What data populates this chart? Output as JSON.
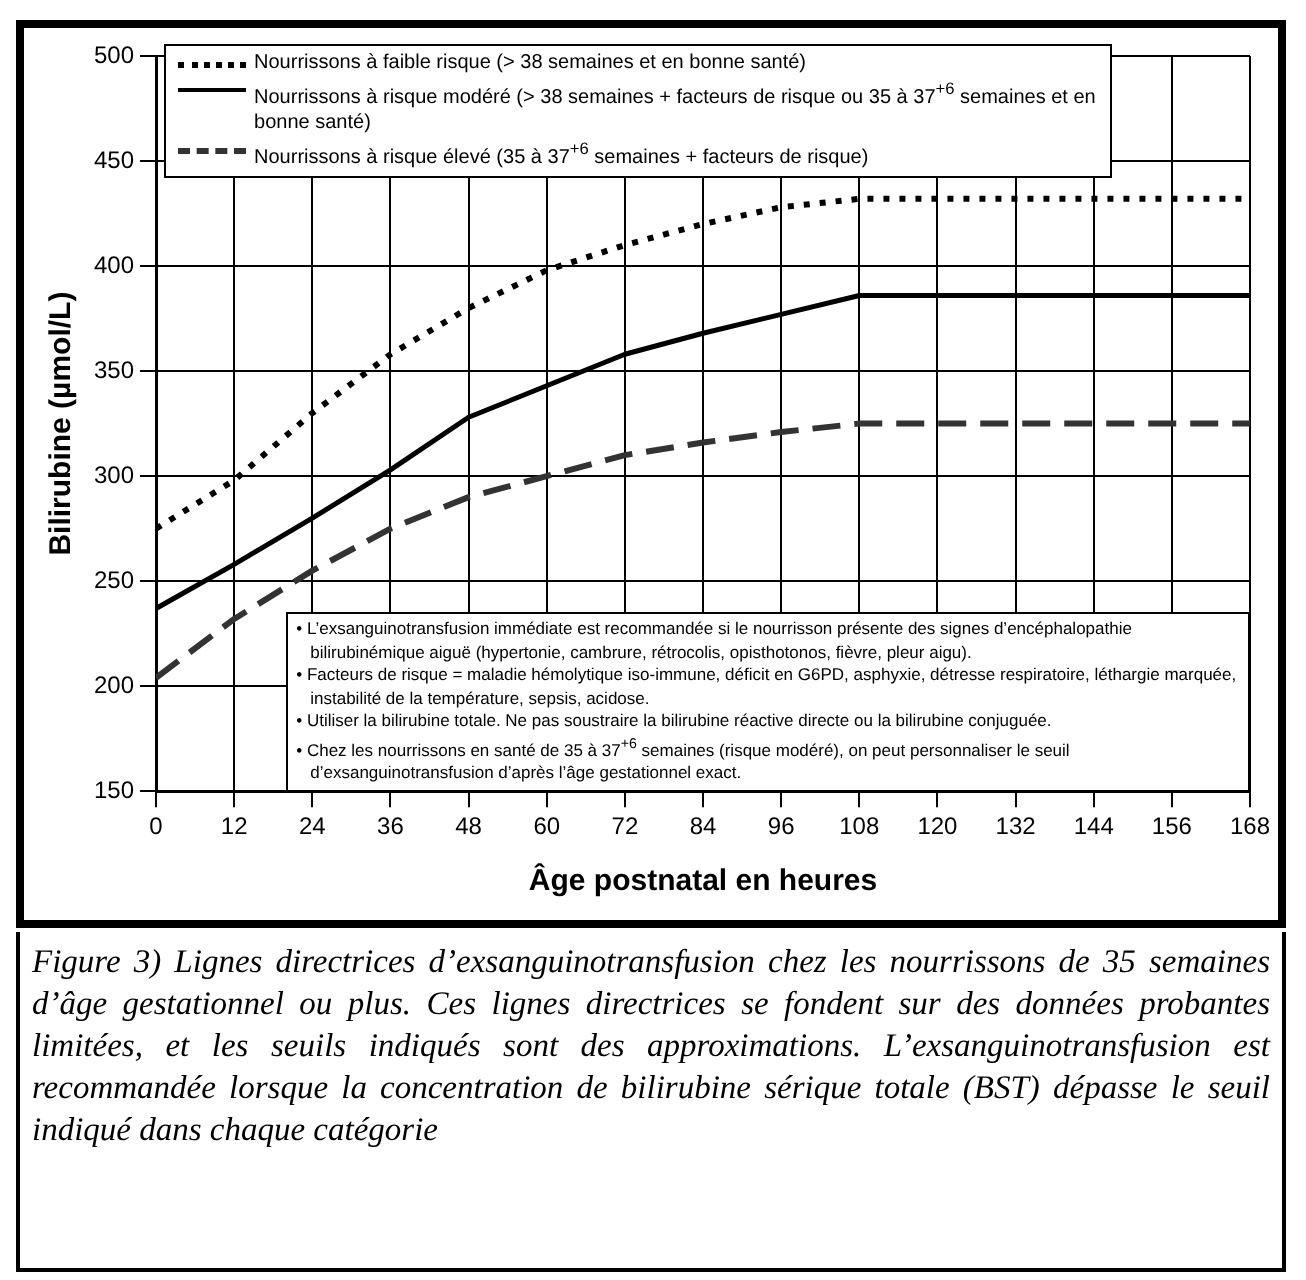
{
  "chart_data": {
    "type": "line",
    "xlabel": "Âge postnatal en heures",
    "ylabel": "Bilirubine (µmol/L)",
    "x": [
      0,
      12,
      24,
      36,
      48,
      60,
      72,
      84,
      96,
      108,
      120,
      132,
      144,
      156,
      168
    ],
    "series": [
      {
        "name": "Nourrissons à faible risque (> 38 semaines et en bonne santé)",
        "color": "#000000",
        "line_style": "dotted",
        "values": [
          275,
          298,
          330,
          358,
          380,
          398,
          410,
          420,
          428,
          432,
          432,
          432,
          432,
          432,
          432
        ]
      },
      {
        "name": "Nourrissons à risque modéré (> 38 semaines + facteurs de risque ou 35 à 37$^{+6}$ semaines et en bonne santé)",
        "color": "#000000",
        "line_style": "solid",
        "values": [
          237,
          258,
          280,
          303,
          328,
          343,
          358,
          368,
          377,
          386,
          386,
          386,
          386,
          386,
          386
        ]
      },
      {
        "name": "Nourrissons à risque élevé (35 à 37$^{+6}$ semaines + facteurs de risque)",
        "color": "#333333",
        "line_style": "dashed",
        "values": [
          204,
          232,
          255,
          275,
          290,
          300,
          310,
          316,
          321,
          325,
          325,
          325,
          325,
          325,
          325
        ]
      }
    ],
    "xlim": [
      0,
      168
    ],
    "xticks": [
      0,
      12,
      24,
      36,
      48,
      60,
      72,
      84,
      96,
      108,
      120,
      132,
      144,
      156,
      168
    ],
    "ylim": [
      150,
      500
    ],
    "yticks": [
      150,
      200,
      250,
      300,
      350,
      400,
      450,
      500
    ],
    "grid": true,
    "legend": "top left",
    "marker": "none",
    "annotations": [
      "• L’exsanguinotransfusion immédiate est recommandée si le nourrisson présente des signes d’encéphalopathie bilirubinémique aiguë (hypertonie, cambrure, rétrocolis, opisthotonos, fièvre, pleur aigu).",
      "• Facteurs de risque = maladie hémolytique iso-immune, déficit en G6PD, asphyxie, détresse respiratoire, léthargie marquée, instabilité de la température, sepsis, acidose.",
      "• Utiliser la bilirubine totale. Ne pas soustraire la bilirubine réactive directe ou la bilirubine conjuguée.",
      "• Chez les nourrissons en santé de 35 à 37$^{+6}$ semaines (risque modéré), on peut personnaliser le seuil d’exsanguinotransfusion d’après l’âge gestationnel exact.",
      "Figure 3) Lignes directrices d’exsanguinotransfusion chez les nourrissons de 35 semaines d’âge gestationnel ou plus. Ces lignes directrices se fondent sur des données probantes limitées, et les seuils indiqués sont des approximations. L’exsanguinotransfusion est recommandée lorsque la concentration de bilirubine sérique totale (BST) dépasse le seuil indiqué dans chaque catégorie"
    ]
  }
}
